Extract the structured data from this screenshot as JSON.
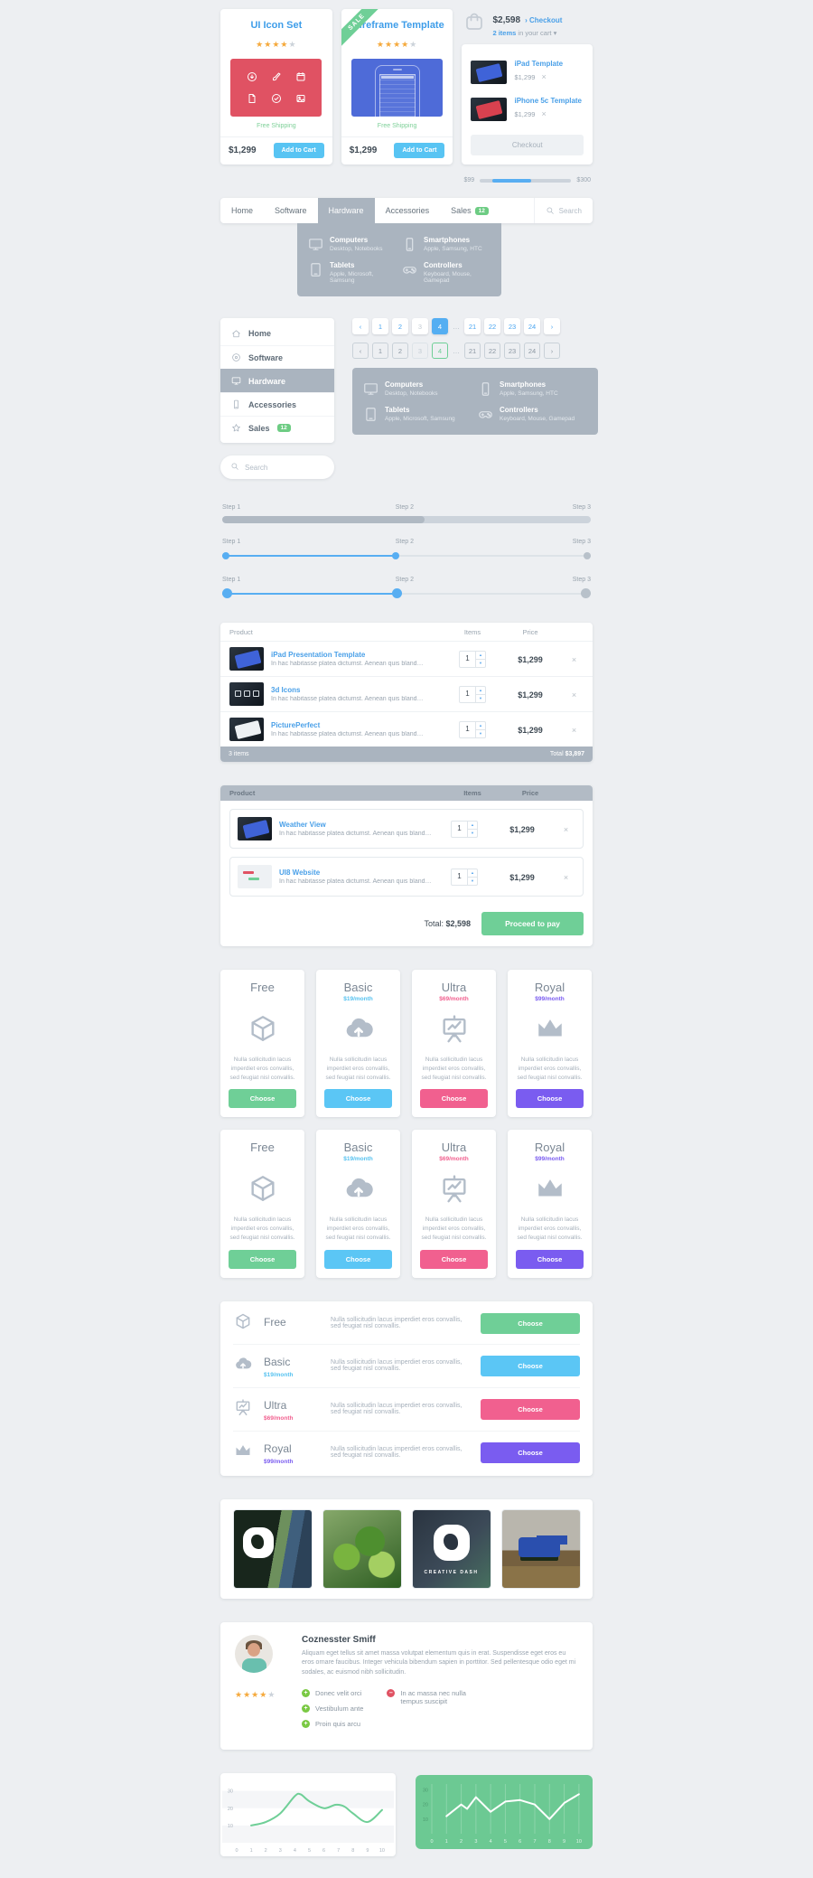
{
  "glyphs": {
    "close": "×",
    "caret_down": "▾",
    "arrow_right": "›",
    "star": "★",
    "plus": "+",
    "minus": "–",
    "up": "▲",
    "down": "▼"
  },
  "products": [
    {
      "title": "UI Icon Set",
      "rating": 4,
      "free_shipping": "Free Shipping",
      "price": "$1,299",
      "add_to_cart": "Add to Cart",
      "tile_icons": [
        "download-icon",
        "brush-icon",
        "calendar-icon",
        "document-icon",
        "check-icon",
        "image-icon"
      ]
    },
    {
      "title": "Wireframe Template",
      "rating": 4,
      "ribbon": "SALE",
      "free_shipping": "Free Shipping",
      "price": "$1,299",
      "add_to_cart": "Add to Cart"
    }
  ],
  "cart": {
    "total": "$2,598",
    "checkout_link": "Checkout",
    "items_count": "2 items",
    "items_suffix": "in your cart",
    "items": [
      {
        "name": "iPad Template",
        "price": "$1,299",
        "thumb": "blue"
      },
      {
        "name": "iPhone 5c Template",
        "price": "$1,299",
        "thumb": "red"
      }
    ],
    "checkout_button": "Checkout",
    "price_min": "$99",
    "price_max": "$300"
  },
  "navbar": {
    "items": [
      {
        "label": "Home"
      },
      {
        "label": "Software"
      },
      {
        "label": "Hardware",
        "active": true
      },
      {
        "label": "Accessories"
      },
      {
        "label": "Sales",
        "badge": "12"
      }
    ],
    "search_placeholder": "Search"
  },
  "mega_menu": {
    "categories": [
      {
        "name": "Computers",
        "sub": "Desktop, Notebooks",
        "icon": "monitor-icon"
      },
      {
        "name": "Smartphones",
        "sub": "Apple, Samsung, HTC",
        "icon": "smartphone-icon"
      },
      {
        "name": "Tablets",
        "sub": "Apple, Microsoft, Samsung",
        "icon": "tablet-icon"
      },
      {
        "name": "Controllers",
        "sub": "Keyboard, Mouse, Gamepad",
        "icon": "gamepad-icon"
      }
    ]
  },
  "sidebar": {
    "items": [
      {
        "label": "Home",
        "icon": "home-icon"
      },
      {
        "label": "Software",
        "icon": "disc-icon"
      },
      {
        "label": "Hardware",
        "icon": "monitor-icon",
        "active": true
      },
      {
        "label": "Accessories",
        "icon": "smartphone-icon"
      },
      {
        "label": "Sales",
        "icon": "star-icon",
        "badge": "12"
      }
    ],
    "search_placeholder": "Search"
  },
  "pagination": {
    "labels": [
      "‹",
      "1",
      "2",
      "3",
      "4",
      "…",
      "21",
      "22",
      "23",
      "24",
      "›"
    ],
    "active": "4",
    "muted": "3"
  },
  "steps": {
    "labels": [
      "Step 1",
      "Step 2",
      "Step 3"
    ],
    "progress_fill_percent": 55,
    "slider_fill_percent": 47
  },
  "cart_tables": {
    "headers": [
      "Product",
      "Items",
      "Price"
    ],
    "description": "In hac habitasse platea dictumst. Aenean quis blandit massa...",
    "table1": {
      "rows": [
        {
          "name": "iPad Presentation Template",
          "qty": "1",
          "price": "$1,299",
          "thumb": "ipad"
        },
        {
          "name": "3d Icons",
          "qty": "1",
          "price": "$1,299",
          "thumb": "d3"
        },
        {
          "name": "PicturePerfect",
          "qty": "1",
          "price": "$1,299",
          "thumb": "picture"
        }
      ],
      "footer_left": "3 items",
      "total_label": "Total",
      "total": "$3,897"
    },
    "table2": {
      "rows": [
        {
          "name": "Weather View",
          "qty": "1",
          "price": "$1,299",
          "thumb": "weather"
        },
        {
          "name": "UI8 Website",
          "qty": "1",
          "price": "$1,299",
          "thumb": "ui8"
        }
      ],
      "total_label": "Total:",
      "total": "$2,598",
      "pay_button": "Proceed to pay"
    }
  },
  "pricing": {
    "description": "Nulla sollicitudin lacus imperdiet eros convallis, sed feugiat nisl convallis.",
    "choose_label": "Choose",
    "plans": [
      {
        "name": "Free",
        "price": "",
        "price_color": "",
        "button_color": "#6fcf97",
        "icon": "cube-icon"
      },
      {
        "name": "Basic",
        "price": "$19/month",
        "price_color": "#56c2f0",
        "button_color": "#5bc6f5",
        "icon": "cloud-upload-icon"
      },
      {
        "name": "Ultra",
        "price": "$69/month",
        "price_color": "#f1608f",
        "button_color": "#f1608f",
        "icon": "presentation-chart-icon"
      },
      {
        "name": "Royal",
        "price": "$99/month",
        "price_color": "#7a5cf0",
        "button_color": "#7a5cf0",
        "icon": "crown-icon"
      }
    ]
  },
  "gallery": {
    "photos": [
      {
        "name": "storefront-window"
      },
      {
        "name": "green-paper-craft"
      },
      {
        "name": "creativedash-logo",
        "caption": "CREATIVE DASH"
      },
      {
        "name": "robot-toy"
      }
    ]
  },
  "testimonial": {
    "name": "Coznesster Smiff",
    "rating": 4,
    "text": "Aliquam eget tellus sit amet massa volutpat elementum quis in erat. Suspendisse eget eros eu eros ornare faucibus. Integer vehicula bibendum sapien in porttitor. Sed pellentesque odio eget mi sodales, ac euismod nibh sollicitudin.",
    "pros": [
      "Donec velit orci",
      "Vestibulum ante",
      "Proin quis arcu"
    ],
    "cons": [
      "In ac massa nec nulla tempus suscipit"
    ]
  },
  "chart_data": [
    {
      "type": "line",
      "style": "smooth",
      "color": "#6fcf97",
      "background": "#ffffff",
      "grid": "horizontal-bands",
      "xlim": [
        0,
        10.5
      ],
      "ylim": [
        0,
        34
      ],
      "yticks": [
        10,
        20,
        30
      ],
      "xticks": [
        0,
        1,
        2,
        3,
        4,
        5,
        6,
        7,
        8,
        9,
        10
      ],
      "points": [
        [
          1,
          10
        ],
        [
          2,
          12
        ],
        [
          3,
          17
        ],
        [
          4,
          27
        ],
        [
          4.4,
          28
        ],
        [
          5,
          24
        ],
        [
          6,
          20
        ],
        [
          6.8,
          22
        ],
        [
          7.4,
          21
        ],
        [
          8,
          17
        ],
        [
          9,
          12
        ],
        [
          10,
          19
        ]
      ]
    },
    {
      "type": "line",
      "style": "jagged",
      "color": "#ffffff",
      "background": "#6cc993",
      "grid": "vertical",
      "xlim": [
        0,
        10.5
      ],
      "ylim": [
        0,
        34
      ],
      "yticks": [
        10,
        20,
        30
      ],
      "xticks": [
        0,
        1,
        2,
        3,
        4,
        5,
        6,
        7,
        8,
        9,
        10
      ],
      "points": [
        [
          1,
          12
        ],
        [
          2,
          20
        ],
        [
          2.4,
          17
        ],
        [
          3,
          25
        ],
        [
          4,
          15
        ],
        [
          5,
          22
        ],
        [
          6,
          23
        ],
        [
          7,
          20
        ],
        [
          7.5,
          15
        ],
        [
          8,
          10
        ],
        [
          9,
          21
        ],
        [
          10,
          27
        ]
      ]
    }
  ]
}
